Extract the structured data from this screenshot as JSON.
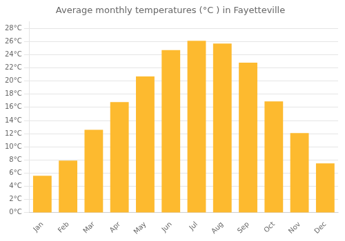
{
  "chart_data": {
    "type": "bar",
    "title": "Average monthly temperatures (°C ) in Fayetteville",
    "categories": [
      "Jan",
      "Feb",
      "Mar",
      "Apr",
      "May",
      "Jun",
      "Jul",
      "Aug",
      "Sep",
      "Oct",
      "Nov",
      "Dec"
    ],
    "values": [
      5.6,
      7.9,
      12.6,
      16.8,
      20.7,
      24.7,
      26.1,
      25.7,
      22.8,
      16.9,
      12.1,
      7.5
    ],
    "color": "#FDBA2F",
    "ylim": [
      0,
      29
    ],
    "yticks": [
      {
        "value": 0,
        "label": "0°C"
      },
      {
        "value": 2,
        "label": "2°C"
      },
      {
        "value": 4,
        "label": "4°C"
      },
      {
        "value": 6,
        "label": "6°C"
      },
      {
        "value": 8,
        "label": "8°C"
      },
      {
        "value": 10,
        "label": "10°C"
      },
      {
        "value": 12,
        "label": "12°C"
      },
      {
        "value": 14,
        "label": "14°C"
      },
      {
        "value": 16,
        "label": "16°C"
      },
      {
        "value": 18,
        "label": "18°C"
      },
      {
        "value": 20,
        "label": "20°C"
      },
      {
        "value": 22,
        "label": "22°C"
      },
      {
        "value": 24,
        "label": "24°C"
      },
      {
        "value": 26,
        "label": "26°C"
      },
      {
        "value": 28,
        "label": "28°C"
      }
    ],
    "grid": true
  }
}
